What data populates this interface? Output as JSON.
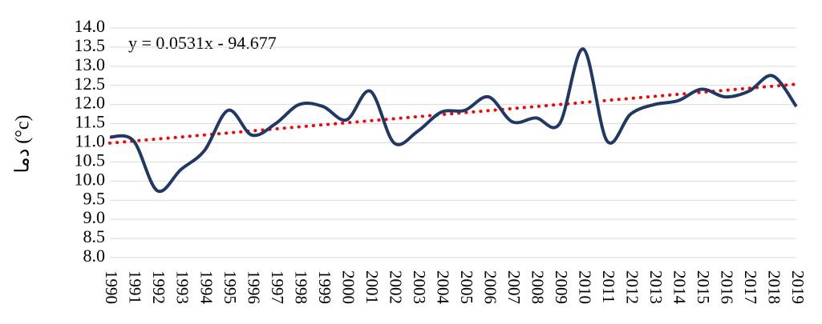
{
  "chart_data": {
    "type": "line",
    "y_label": "دما (°c)",
    "annotation": "y = 0.0531x - 94.677",
    "categories": [
      "1990",
      "1991",
      "1992",
      "1993",
      "1994",
      "1995",
      "1996",
      "1997",
      "1998",
      "1999",
      "2000",
      "2001",
      "2002",
      "2003",
      "2004",
      "2005",
      "2006",
      "2007",
      "2008",
      "2009",
      "2010",
      "2011",
      "2012",
      "2013",
      "2014",
      "2015",
      "2016",
      "2017",
      "2018",
      "2019"
    ],
    "series": [
      {
        "color": "#1f3864",
        "values": [
          11.15,
          11.05,
          9.75,
          10.3,
          10.8,
          11.85,
          11.2,
          11.5,
          12.0,
          11.95,
          11.6,
          12.35,
          11.0,
          11.3,
          11.8,
          11.85,
          12.2,
          11.55,
          11.65,
          11.5,
          13.45,
          11.05,
          11.75,
          12.0,
          12.1,
          12.4,
          12.2,
          12.35,
          12.75,
          11.95
        ]
      }
    ],
    "trendline": {
      "slope": 0.0531,
      "intercept": -94.677,
      "color": "#ff0000"
    },
    "ylim": [
      8,
      14
    ],
    "yticks": [
      {
        "value": 8,
        "label": "8.0"
      },
      {
        "value": 8.5,
        "label": "8.5"
      },
      {
        "value": 9,
        "label": "9.0"
      },
      {
        "value": 9.5,
        "label": "9.5"
      },
      {
        "value": 10,
        "label": "10.0"
      },
      {
        "value": 10.5,
        "label": "10.5"
      },
      {
        "value": 11,
        "label": "11.0"
      },
      {
        "value": 11.5,
        "label": "11.5"
      },
      {
        "value": 12,
        "label": "12.0"
      },
      {
        "value": 12.5,
        "label": "12.5"
      },
      {
        "value": 13,
        "label": "13.0"
      },
      {
        "value": 13.5,
        "label": "13.5"
      },
      {
        "value": 14,
        "label": "14.0"
      }
    ],
    "grid": true
  }
}
